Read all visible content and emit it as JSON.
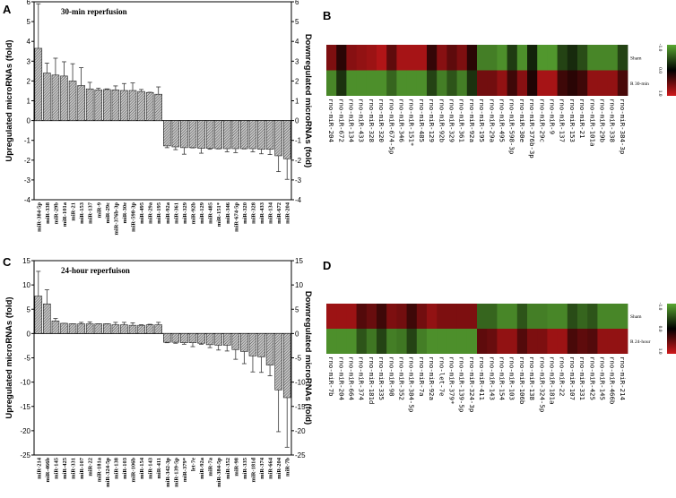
{
  "panels": [
    "A",
    "B",
    "C",
    "D"
  ],
  "chart_data": [
    {
      "type": "bar",
      "panel": "A",
      "title": "30-min reperfusion",
      "ylabel": "Upregulated microRNAs (fold)",
      "ylabel_right": "Downregulated microRNAs (fold)",
      "ylim": [
        -4,
        6
      ],
      "yticks": [
        -4,
        -3,
        -2,
        -1,
        0,
        1,
        2,
        3,
        4,
        5,
        6
      ],
      "categories": [
        "miR-384-5p",
        "miR-338",
        "miR-29b",
        "miR-101a",
        "miR-21",
        "miR-153",
        "miR-137",
        "miR-9",
        "miR-29c",
        "miR-376b-3p",
        "miR-30e",
        "miR-598-3p",
        "miR-495",
        "miR-29a",
        "miR-195",
        "miR-92a",
        "miR-361",
        "miR-329",
        "miR-92b",
        "miR-129",
        "miR-485",
        "miR-151*",
        "miR-346",
        "miR-674-5p",
        "miR-320",
        "miR-328",
        "miR-433",
        "miR-134",
        "miR-672",
        "miR-204"
      ],
      "values": [
        3.65,
        2.4,
        2.3,
        2.25,
        2.0,
        1.77,
        1.6,
        1.55,
        1.57,
        1.55,
        1.52,
        1.52,
        1.47,
        1.42,
        1.33,
        -1.28,
        -1.33,
        -1.37,
        -1.37,
        -1.4,
        -1.4,
        -1.42,
        -1.42,
        -1.42,
        -1.42,
        -1.42,
        -1.45,
        -1.45,
        -1.78,
        -1.93
      ],
      "error_upper": [
        5.9,
        2.9,
        3.15,
        2.97,
        2.87,
        2.67,
        1.93,
        1.63,
        1.6,
        1.75,
        1.87,
        1.9,
        1.57,
        1.43,
        1.7,
        -1.37,
        -1.47,
        -1.7,
        -1.38,
        -1.65,
        -1.45,
        -1.43,
        -1.58,
        -1.62,
        -1.43,
        -1.58,
        -1.68,
        -1.72,
        -2.58,
        -2.97
      ]
    },
    {
      "type": "heatmap",
      "panel": "B",
      "rows": [
        "Sham",
        "R 30-min"
      ],
      "columns": [
        "rno-miR-204",
        "rno-miR-672",
        "rno-miR-134",
        "rno-miR-433",
        "rno-miR-328",
        "rno-miR-320",
        "rno-miR-674-5p",
        "rno-miR-346",
        "rno-miR-151*",
        "rno-miR-485",
        "rno-miR-129",
        "rno-miR-92b",
        "rno-miR-329",
        "rno-miR-361",
        "rno-miR-92a",
        "rno-miR-195",
        "rno-miR-29a",
        "rno-miR-495",
        "rno-miR-598-3p",
        "rno-miR-30e",
        "rno-miR-376b-3p",
        "rno-miR-29c",
        "rno-miR-9",
        "rno-miR-137",
        "rno-miR-153",
        "rno-miR-21",
        "rno-miR-101a",
        "rno-miR-29b",
        "rno-miR-338",
        "rno-miR-384-3p"
      ],
      "values": [
        [
          0.6,
          0.2,
          0.65,
          0.7,
          0.75,
          0.85,
          0.45,
          0.8,
          0.8,
          0.8,
          0.25,
          0.65,
          0.45,
          0.6,
          0.2,
          -0.75,
          -0.75,
          -0.85,
          -0.35,
          -0.85,
          -0.2,
          -0.9,
          -0.9,
          -0.4,
          -0.25,
          -0.45,
          -0.8,
          -0.8,
          -0.8,
          -0.4
        ],
        [
          -0.8,
          -0.3,
          -0.85,
          -0.85,
          -0.85,
          -0.85,
          -0.6,
          -0.85,
          -0.85,
          -0.85,
          -0.4,
          -0.75,
          -0.5,
          -0.75,
          -0.3,
          0.55,
          0.55,
          0.7,
          0.3,
          0.65,
          0.15,
          0.8,
          0.8,
          0.3,
          0.2,
          0.3,
          0.7,
          0.7,
          0.7,
          0.35
        ]
      ],
      "scale_ticks": [
        "-1.0",
        "0.0",
        "1.0"
      ],
      "scale_colors": {
        "low": "#5aa832",
        "mid": "#000000",
        "high": "#d0191b"
      }
    },
    {
      "type": "bar",
      "panel": "C",
      "title": "24-hour reperfuison",
      "ylabel": "Upregulated microRNAs (fold)",
      "ylabel_right": "Downregulated microRNAs (fold)",
      "ylim": [
        -25,
        15
      ],
      "yticks": [
        -25,
        -20,
        -15,
        -10,
        -5,
        0,
        5,
        10,
        15
      ],
      "categories": [
        "miR-214",
        "miR-466b",
        "miR-145",
        "miR-425",
        "miR-331",
        "miR-107",
        "miR-22",
        "miR-181a",
        "miR-324-5p",
        "miR-138",
        "miR-103",
        "miR-106b",
        "miR-154",
        "miR-143",
        "miR-411",
        "miR-342-3p",
        "miR-139-5p",
        "miR-379*",
        "let-7e",
        "miR-92a",
        "miR-7a",
        "miR-384-5p",
        "miR-352",
        "miR-98",
        "miR-335",
        "miR-181d",
        "miR-374",
        "miR-664",
        "miR-204",
        "miR-7b"
      ],
      "values": [
        7.7,
        6.1,
        2.6,
        2.1,
        2.0,
        2.0,
        2.0,
        2.0,
        2.0,
        1.8,
        1.8,
        1.7,
        1.7,
        1.8,
        1.8,
        -1.8,
        -1.8,
        -1.9,
        -1.9,
        -2.0,
        -2.3,
        -2.4,
        -2.4,
        -3.3,
        -3.7,
        -4.6,
        -4.8,
        -6.5,
        -11.6,
        -13.2
      ],
      "error_upper": [
        12.8,
        9.0,
        3.1,
        2.1,
        2.0,
        2.3,
        2.4,
        2.0,
        2.0,
        2.3,
        2.3,
        2.2,
        1.8,
        1.9,
        2.3,
        -1.9,
        -2.0,
        -2.2,
        -2.7,
        -2.2,
        -2.9,
        -3.4,
        -3.6,
        -5.3,
        -6.2,
        -7.9,
        -8.0,
        -8.7,
        -20.2,
        -23.4
      ]
    },
    {
      "type": "heatmap",
      "panel": "D",
      "rows": [
        "Sham",
        "R 24-hour"
      ],
      "columns": [
        "rno-miR-7b",
        "rno-miR-204",
        "rno-miR-664",
        "rno-miR-374",
        "rno-miR-181d",
        "rno-miR-335",
        "rno-miR-98",
        "rno-miR-352",
        "rno-miR-384-5p",
        "rno-miR-7a",
        "rno-miR-92a",
        "rno-let-7e",
        "rno-miR-379*",
        "rno-miR-139-5p",
        "rno-miR-324-3p",
        "rno-miR-411",
        "rno-miR-143",
        "rno-miR-154",
        "rno-miR-103",
        "rno-miR-106b",
        "rno-miR-138",
        "rno-miR-324-5p",
        "rno-miR-181a",
        "rno-miR-22",
        "rno-miR-107",
        "rno-miR-331",
        "rno-miR-425",
        "rno-miR-145",
        "rno-miR-466b",
        "rno-miR-214"
      ],
      "values": [
        [
          0.75,
          0.75,
          0.75,
          0.4,
          0.5,
          0.3,
          0.6,
          0.55,
          0.3,
          0.55,
          0.7,
          0.6,
          0.6,
          0.6,
          0.6,
          -0.6,
          -0.6,
          -0.8,
          -0.8,
          -0.5,
          -0.75,
          -0.75,
          -0.8,
          -0.8,
          -0.45,
          -0.6,
          -0.5,
          -0.8,
          -0.8,
          -0.8
        ],
        [
          -0.85,
          -0.85,
          -0.85,
          -0.5,
          -0.7,
          -0.4,
          -0.75,
          -0.7,
          -0.4,
          -0.75,
          -0.85,
          -0.85,
          -0.85,
          -0.85,
          -0.85,
          0.45,
          0.5,
          0.7,
          0.7,
          0.4,
          0.6,
          0.6,
          0.75,
          0.75,
          0.35,
          0.45,
          0.4,
          0.7,
          0.7,
          0.7
        ]
      ],
      "scale_ticks": [
        "-1.0",
        "0.0",
        "1.0"
      ],
      "scale_colors": {
        "low": "#5aa832",
        "mid": "#000000",
        "high": "#d0191b"
      }
    }
  ]
}
